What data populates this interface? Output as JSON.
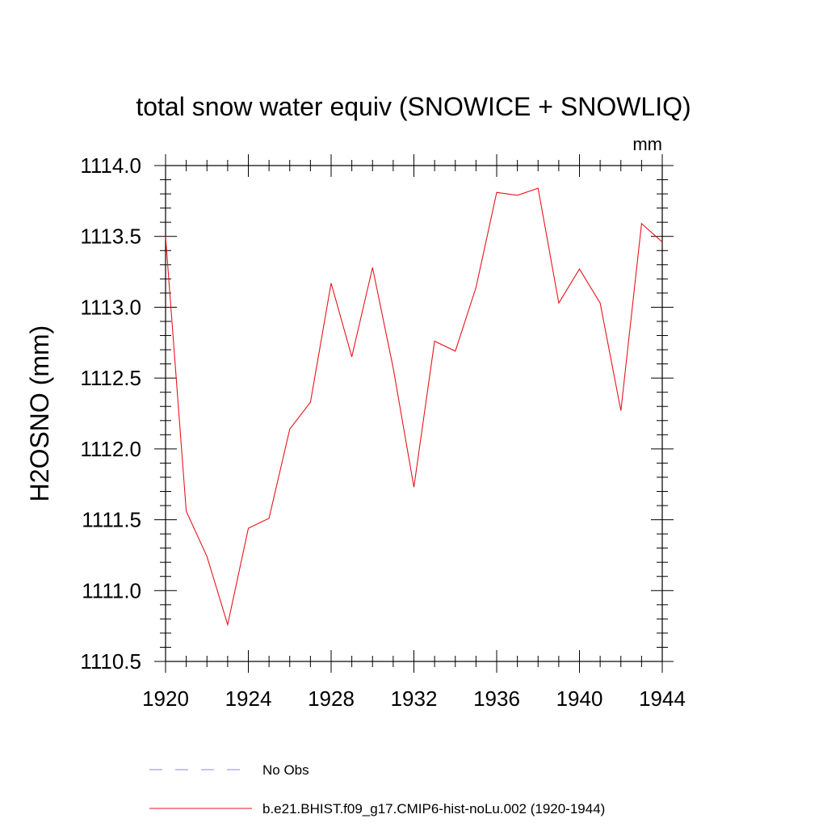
{
  "chart_data": {
    "type": "line",
    "title": "total snow water equiv (SNOWICE + SNOWLIQ)",
    "units": "mm",
    "xlabel": "",
    "ylabel": "H2OSNO  (mm)",
    "xlim": [
      1920,
      1944
    ],
    "ylim": [
      1110.5,
      1114.0
    ],
    "x_ticks": [
      "1920",
      "1924",
      "1928",
      "1932",
      "1936",
      "1940",
      "1944"
    ],
    "y_ticks": [
      "1110.5",
      "1111.0",
      "1111.5",
      "1112.0",
      "1112.5",
      "1113.0",
      "1113.5",
      "1114.0"
    ],
    "series": [
      {
        "name": "b.e21.BHIST.f09_g17.CMIP6-hist-noLu.002 (1920-1944)",
        "color": "#e8141c",
        "x": [
          1920,
          1921,
          1922,
          1923,
          1924,
          1925,
          1926,
          1927,
          1928,
          1929,
          1930,
          1931,
          1932,
          1933,
          1934,
          1935,
          1936,
          1937,
          1938,
          1939,
          1940,
          1941,
          1942,
          1943,
          1944
        ],
        "values": [
          1113.5,
          1111.56,
          1111.24,
          1110.76,
          1111.44,
          1111.51,
          1112.14,
          1112.33,
          1113.17,
          1112.65,
          1113.28,
          1112.57,
          1111.73,
          1112.76,
          1112.69,
          1113.14,
          1113.81,
          1113.79,
          1113.84,
          1113.03,
          1113.27,
          1113.03,
          1112.27,
          1113.59,
          1113.46
        ]
      }
    ],
    "legend": {
      "placement": "bottom",
      "entries": [
        {
          "label": "No Obs",
          "style": "dashed",
          "color": "#8a8adf"
        },
        {
          "label": "b.e21.BHIST.f09_g17.CMIP6-hist-noLu.002 (1920-1944)",
          "style": "solid",
          "color": "#e8141c"
        }
      ]
    },
    "grid": false
  }
}
